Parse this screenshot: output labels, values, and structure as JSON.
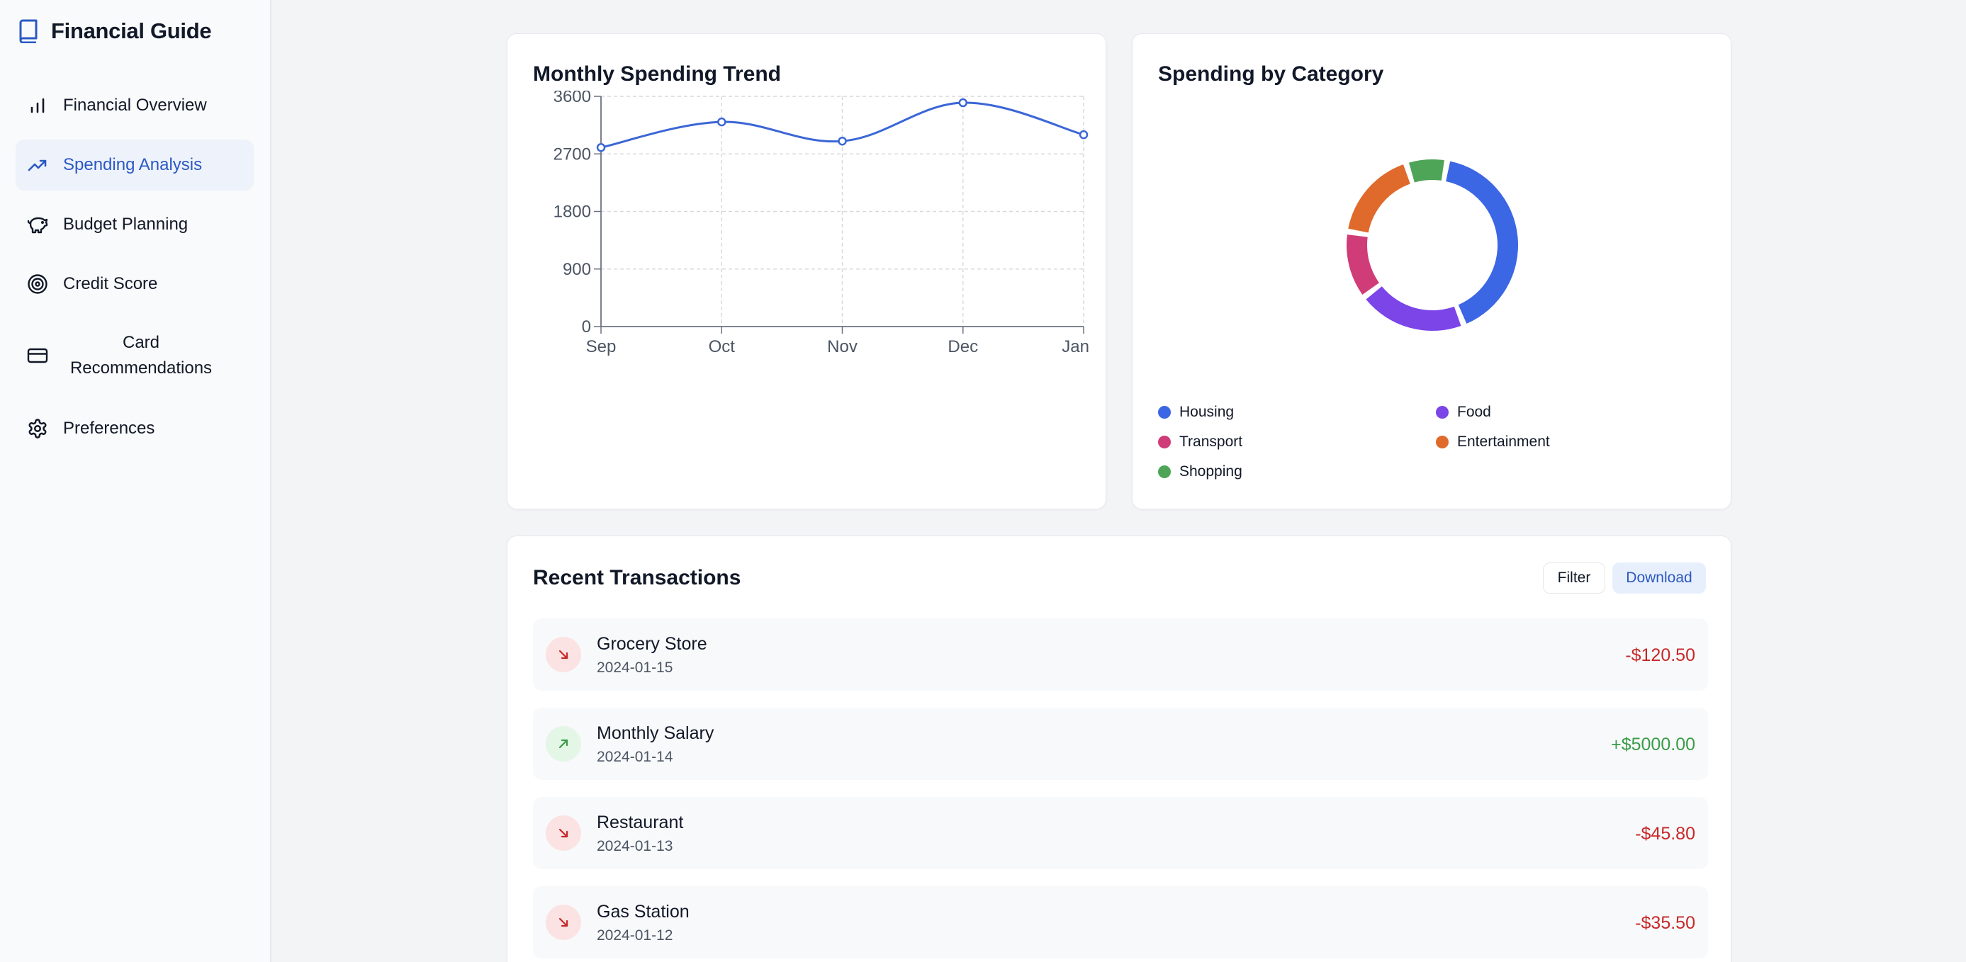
{
  "app": {
    "title": "Financial Guide",
    "brand_icon": "book-icon"
  },
  "sidebar": {
    "items": [
      {
        "label": "Financial Overview",
        "icon": "bar-chart-icon",
        "active": false
      },
      {
        "label": "Spending Analysis",
        "icon": "trending-up-icon",
        "active": true
      },
      {
        "label": "Budget Planning",
        "icon": "piggy-bank-icon",
        "active": false
      },
      {
        "label": "Credit Score",
        "icon": "target-icon",
        "active": false
      },
      {
        "label": "Card Recommendations",
        "icon": "credit-card-icon",
        "active": false
      },
      {
        "label": "Preferences",
        "icon": "gear-icon",
        "active": false
      }
    ]
  },
  "trend_card": {
    "title": "Monthly Spending Trend"
  },
  "category_card": {
    "title": "Spending by Category"
  },
  "chart_data": [
    {
      "type": "line",
      "title": "Monthly Spending Trend",
      "x": [
        "Sep",
        "Oct",
        "Nov",
        "Dec",
        "Jan"
      ],
      "series": [
        {
          "values": [
            2800,
            3200,
            2900,
            3500,
            3000
          ]
        }
      ],
      "yticks": [
        0,
        900,
        1800,
        2700,
        3600
      ],
      "ylim": [
        0,
        3600
      ],
      "grid": true,
      "color": "#3b66d6"
    },
    {
      "type": "pie",
      "title": "Spending by Category",
      "donut": true,
      "categories": [
        "Housing",
        "Food",
        "Transport",
        "Entertainment",
        "Shopping"
      ],
      "values": [
        40,
        20,
        12.5,
        17,
        7.5
      ],
      "colors": [
        "#3b66e4",
        "#7b45e8",
        "#d03c78",
        "#e0692c",
        "#4ea457"
      ],
      "legend_position": "bottom"
    }
  ],
  "transactions": {
    "title": "Recent Transactions",
    "filter_label": "Filter",
    "download_label": "Download",
    "rows": [
      {
        "name": "Grocery Store",
        "date": "2024-01-15",
        "amount": "-$120.50",
        "direction": "out"
      },
      {
        "name": "Monthly Salary",
        "date": "2024-01-14",
        "amount": "+$5000.00",
        "direction": "in"
      },
      {
        "name": "Restaurant",
        "date": "2024-01-13",
        "amount": "-$45.80",
        "direction": "out"
      },
      {
        "name": "Gas Station",
        "date": "2024-01-12",
        "amount": "-$35.50",
        "direction": "out"
      }
    ]
  }
}
